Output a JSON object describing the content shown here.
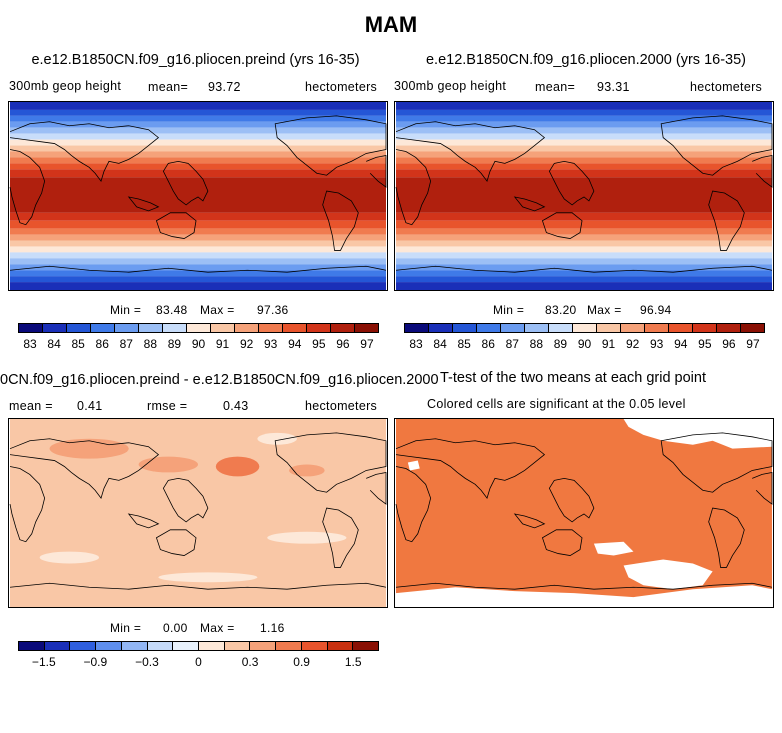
{
  "main_title": "MAM",
  "panels": {
    "top_left": {
      "title": "e.e12.B1850CN.f09_g16.pliocen.preind (yrs 16-35)",
      "variable": "300mb geop height",
      "mean_label": "mean=",
      "mean_value": "93.72",
      "units": "hectometers",
      "min_label": "Min =",
      "min_value": "83.48",
      "max_label": "Max =",
      "max_value": "97.36"
    },
    "top_right": {
      "title": "e.e12.B1850CN.f09_g16.pliocen.2000 (yrs 16-35)",
      "variable": "300mb geop height",
      "mean_label": "mean=",
      "mean_value": "93.31",
      "units": "hectometers",
      "min_label": "Min =",
      "min_value": "83.20",
      "max_label": "Max =",
      "max_value": "96.94"
    },
    "bottom_left": {
      "title": "0CN.f09_g16.pliocen.preind - e.e12.B1850CN.f09_g16.pliocen.2000",
      "mean_label": "mean =",
      "mean_value": "0.41",
      "rmse_label": "rmse =",
      "rmse_value": "0.43",
      "units": "hectometers",
      "min_label": "Min =",
      "min_value": "0.00",
      "max_label": "Max =",
      "max_value": "1.16"
    },
    "bottom_right": {
      "title": "T-test of the two means at each grid point",
      "subtitle": "Colored cells are significant at the 0.05 level"
    }
  },
  "colorbars": {
    "absolute": {
      "colors": [
        "#0a0a7a",
        "#1a2fb8",
        "#2456d6",
        "#3f7ae8",
        "#6b9cf0",
        "#9cbff5",
        "#c8ddfa",
        "#fde8d8",
        "#f9c7a6",
        "#f5a27a",
        "#f07b4f",
        "#e8542c",
        "#d2341a",
        "#b0200e",
        "#8a1004"
      ],
      "labels": [
        "83",
        "84",
        "85",
        "86",
        "87",
        "88",
        "89",
        "90",
        "91",
        "92",
        "93",
        "94",
        "95",
        "96",
        "97"
      ]
    },
    "difference": {
      "colors": [
        "#0a0a7a",
        "#1a2fb8",
        "#2f5fde",
        "#5f8fee",
        "#92b6f4",
        "#c5daf9",
        "#e8f1fc",
        "#fde8d8",
        "#f9c7a6",
        "#f5a27a",
        "#f07b4f",
        "#e8542c",
        "#c8300f",
        "#8a1004"
      ],
      "labels": [
        "−1.5",
        "−0.9",
        "−0.3",
        "0",
        "0.3",
        "0.9",
        "1.5"
      ]
    }
  },
  "legend_colors": {
    "ttest_significant": "#f07840",
    "ttest_insignificant": "#ffffff"
  }
}
